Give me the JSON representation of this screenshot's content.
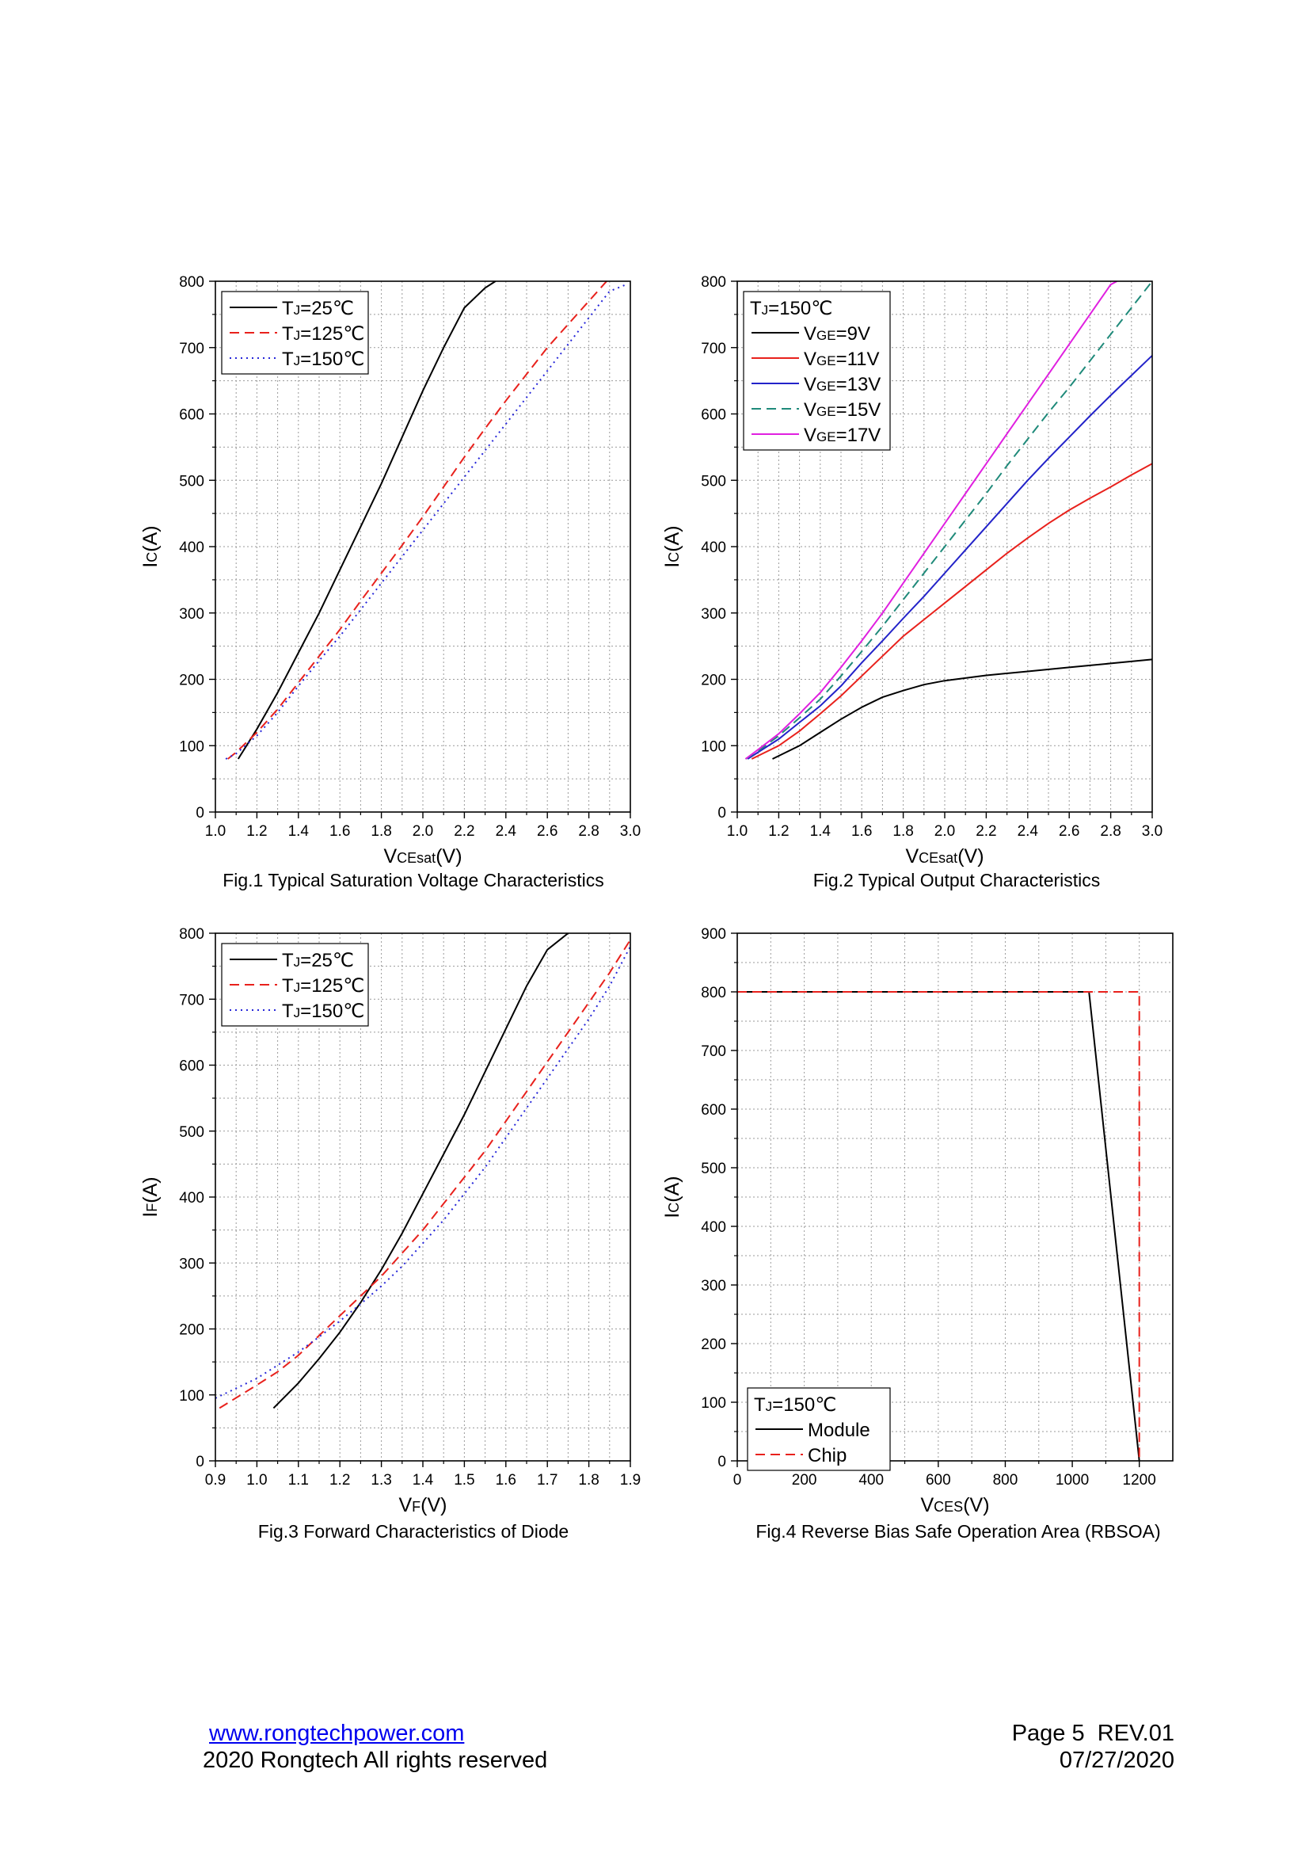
{
  "chart_data": [
    {
      "type": "line",
      "caption": "Fig.1 Typical Saturation Voltage Characteristics",
      "xlabel": "VCEsat(V)",
      "xlabel_parts": [
        [
          "V",
          "main"
        ],
        [
          "CEsat",
          "sub"
        ],
        [
          "(V)",
          "main"
        ]
      ],
      "ylabel_parts": [
        [
          "I",
          "main"
        ],
        [
          "C",
          "sub"
        ],
        [
          "(A)",
          "main"
        ]
      ],
      "xlim": [
        1.0,
        3.0
      ],
      "ylim": [
        0,
        800
      ],
      "xticks": [
        1.0,
        1.2,
        1.4,
        1.6,
        1.8,
        2.0,
        2.2,
        2.4,
        2.6,
        2.8,
        3.0
      ],
      "xtick_labels": [
        "1.0",
        "1.2",
        "1.4",
        "1.6",
        "1.8",
        "2.0",
        "2.2",
        "2.4",
        "2.6",
        "2.8",
        "3.0"
      ],
      "yticks": [
        0,
        100,
        200,
        300,
        400,
        500,
        600,
        700,
        800
      ],
      "ytick_labels": [
        "0",
        "100",
        "200",
        "300",
        "400",
        "500",
        "600",
        "700",
        "800"
      ],
      "grid": true,
      "legend_position": "top-left",
      "legend_title": [],
      "series": [
        {
          "name": "TJ=25℃",
          "name_parts": [
            [
              "T",
              "main"
            ],
            [
              "J",
              "sub"
            ],
            [
              "=25℃",
              "main"
            ]
          ],
          "color": "#000000",
          "style": "solid",
          "x": [
            1.11,
            1.2,
            1.3,
            1.4,
            1.5,
            1.6,
            1.7,
            1.8,
            1.9,
            2.0,
            2.1,
            2.2,
            2.3,
            2.35
          ],
          "y": [
            80,
            125,
            180,
            240,
            300,
            365,
            430,
            495,
            565,
            635,
            700,
            760,
            790,
            800
          ]
        },
        {
          "name": "TJ=125℃",
          "name_parts": [
            [
              "T",
              "main"
            ],
            [
              "J",
              "sub"
            ],
            [
              "=125℃",
              "main"
            ]
          ],
          "color": "#e8211c",
          "style": "dashed",
          "x": [
            1.06,
            1.1,
            1.2,
            1.3,
            1.4,
            1.5,
            1.6,
            1.7,
            1.8,
            1.9,
            2.0,
            2.1,
            2.2,
            2.3,
            2.4,
            2.5,
            2.6,
            2.7,
            2.8,
            2.9
          ],
          "y": [
            80,
            90,
            120,
            155,
            195,
            235,
            275,
            318,
            360,
            402,
            445,
            490,
            535,
            578,
            620,
            660,
            700,
            735,
            770,
            805
          ]
        },
        {
          "name": "TJ=150℃",
          "name_parts": [
            [
              "T",
              "main"
            ],
            [
              "J",
              "sub"
            ],
            [
              "=150℃",
              "main"
            ]
          ],
          "color": "#2626d9",
          "style": "dotted",
          "x": [
            1.05,
            1.1,
            1.2,
            1.3,
            1.4,
            1.5,
            1.6,
            1.7,
            1.8,
            1.9,
            2.0,
            2.1,
            2.2,
            2.3,
            2.4,
            2.5,
            2.6,
            2.7,
            2.8,
            2.9,
            2.98
          ],
          "y": [
            80,
            88,
            115,
            150,
            190,
            228,
            265,
            305,
            345,
            385,
            425,
            465,
            505,
            545,
            585,
            625,
            665,
            705,
            745,
            785,
            795
          ]
        }
      ]
    },
    {
      "type": "line",
      "caption": "Fig.2 Typical Output Characteristics",
      "xlabel": "VCEsat(V)",
      "xlabel_parts": [
        [
          "V",
          "main"
        ],
        [
          "CEsat",
          "sub"
        ],
        [
          "(V)",
          "main"
        ]
      ],
      "ylabel_parts": [
        [
          "I",
          "main"
        ],
        [
          "C",
          "sub"
        ],
        [
          "(A)",
          "main"
        ]
      ],
      "xlim": [
        1.0,
        3.0
      ],
      "ylim": [
        0,
        800
      ],
      "xticks": [
        1.0,
        1.2,
        1.4,
        1.6,
        1.8,
        2.0,
        2.2,
        2.4,
        2.6,
        2.8,
        3.0
      ],
      "xtick_labels": [
        "1.0",
        "1.2",
        "1.4",
        "1.6",
        "1.8",
        "2.0",
        "2.2",
        "2.4",
        "2.6",
        "2.8",
        "3.0"
      ],
      "yticks": [
        0,
        100,
        200,
        300,
        400,
        500,
        600,
        700,
        800
      ],
      "ytick_labels": [
        "0",
        "100",
        "200",
        "300",
        "400",
        "500",
        "600",
        "700",
        "800"
      ],
      "grid": true,
      "legend_position": "top-left",
      "legend_title": [
        [
          "T",
          "main"
        ],
        [
          "J",
          "sub"
        ],
        [
          "=150℃",
          "main"
        ]
      ],
      "series": [
        {
          "name": "VGE=9V",
          "name_parts": [
            [
              "V",
              "main"
            ],
            [
              "GE",
              "sub"
            ],
            [
              "=9V",
              "main"
            ]
          ],
          "color": "#000000",
          "style": "solid",
          "x": [
            1.17,
            1.3,
            1.4,
            1.5,
            1.6,
            1.7,
            1.8,
            1.9,
            2.0,
            2.2,
            2.4,
            2.6,
            2.8,
            3.0
          ],
          "y": [
            80,
            100,
            120,
            140,
            158,
            173,
            183,
            192,
            198,
            206,
            212,
            218,
            224,
            230
          ]
        },
        {
          "name": "VGE=11V",
          "name_parts": [
            [
              "V",
              "main"
            ],
            [
              "GE",
              "sub"
            ],
            [
              "=11V",
              "main"
            ]
          ],
          "color": "#e8211c",
          "style": "solid",
          "x": [
            1.07,
            1.2,
            1.3,
            1.4,
            1.5,
            1.6,
            1.7,
            1.8,
            1.9,
            2.0,
            2.1,
            2.2,
            2.3,
            2.4,
            2.5,
            2.6,
            2.7,
            2.8,
            2.9,
            3.0
          ],
          "y": [
            80,
            100,
            122,
            148,
            175,
            205,
            235,
            265,
            290,
            315,
            340,
            365,
            390,
            413,
            435,
            455,
            473,
            490,
            508,
            525
          ]
        },
        {
          "name": "VGE=13V",
          "name_parts": [
            [
              "V",
              "main"
            ],
            [
              "GE",
              "sub"
            ],
            [
              "=13V",
              "main"
            ]
          ],
          "color": "#2323c9",
          "style": "solid",
          "x": [
            1.05,
            1.1,
            1.2,
            1.3,
            1.4,
            1.5,
            1.6,
            1.7,
            1.8,
            1.9,
            2.0,
            2.1,
            2.2,
            2.3,
            2.4,
            2.5,
            2.6,
            2.7,
            2.8,
            2.9,
            3.0
          ],
          "y": [
            80,
            90,
            110,
            135,
            160,
            190,
            225,
            258,
            292,
            325,
            360,
            395,
            430,
            465,
            500,
            533,
            565,
            597,
            628,
            658,
            688
          ]
        },
        {
          "name": "VGE=15V",
          "name_parts": [
            [
              "V",
              "main"
            ],
            [
              "GE",
              "sub"
            ],
            [
              "=15V",
              "main"
            ]
          ],
          "color": "#1f8a7a",
          "style": "dashed",
          "x": [
            1.04,
            1.1,
            1.2,
            1.3,
            1.4,
            1.5,
            1.6,
            1.7,
            1.8,
            1.9,
            2.0,
            2.1,
            2.2,
            2.3,
            2.4,
            2.5,
            2.6,
            2.7,
            2.8,
            2.9,
            3.0
          ],
          "y": [
            80,
            92,
            115,
            142,
            170,
            205,
            242,
            280,
            320,
            360,
            400,
            440,
            480,
            522,
            562,
            602,
            640,
            680,
            720,
            760,
            800
          ]
        },
        {
          "name": "VGE=17V",
          "name_parts": [
            [
              "V",
              "main"
            ],
            [
              "GE",
              "sub"
            ],
            [
              "=17V",
              "main"
            ]
          ],
          "color": "#e020e0",
          "style": "solid",
          "x": [
            1.04,
            1.1,
            1.2,
            1.3,
            1.4,
            1.5,
            1.6,
            1.7,
            1.8,
            1.9,
            2.0,
            2.1,
            2.2,
            2.3,
            2.4,
            2.5,
            2.6,
            2.7,
            2.8,
            2.83
          ],
          "y": [
            80,
            94,
            118,
            148,
            180,
            218,
            258,
            300,
            345,
            390,
            435,
            480,
            525,
            570,
            615,
            660,
            705,
            750,
            795,
            800
          ]
        }
      ]
    },
    {
      "type": "line",
      "caption": "Fig.3 Forward Characteristics of Diode",
      "xlabel": "VF(V)",
      "xlabel_parts": [
        [
          "V",
          "main"
        ],
        [
          "F",
          "sub"
        ],
        [
          "(V)",
          "main"
        ]
      ],
      "ylabel_parts": [
        [
          "I",
          "main"
        ],
        [
          "F",
          "sub"
        ],
        [
          "(A)",
          "main"
        ]
      ],
      "xlim": [
        0.9,
        1.9
      ],
      "ylim": [
        0,
        800
      ],
      "xticks": [
        0.9,
        1.0,
        1.1,
        1.2,
        1.3,
        1.4,
        1.5,
        1.6,
        1.7,
        1.8,
        1.9
      ],
      "xtick_labels": [
        "0.9",
        "1.0",
        "1.1",
        "1.2",
        "1.3",
        "1.4",
        "1.5",
        "1.6",
        "1.7",
        "1.8",
        "1.9"
      ],
      "yticks": [
        0,
        100,
        200,
        300,
        400,
        500,
        600,
        700,
        800
      ],
      "ytick_labels": [
        "0",
        "100",
        "200",
        "300",
        "400",
        "500",
        "600",
        "700",
        "800"
      ],
      "grid": true,
      "legend_position": "top-left",
      "legend_title": [],
      "series": [
        {
          "name": "TJ=25℃",
          "name_parts": [
            [
              "T",
              "main"
            ],
            [
              "J",
              "sub"
            ],
            [
              "=25℃",
              "main"
            ]
          ],
          "color": "#000000",
          "style": "solid",
          "x": [
            1.04,
            1.1,
            1.15,
            1.2,
            1.25,
            1.3,
            1.35,
            1.4,
            1.45,
            1.5,
            1.55,
            1.6,
            1.65,
            1.7,
            1.75,
            1.76
          ],
          "y": [
            80,
            118,
            155,
            195,
            240,
            290,
            345,
            405,
            465,
            525,
            590,
            655,
            720,
            775,
            800,
            805
          ]
        },
        {
          "name": "TJ=125℃",
          "name_parts": [
            [
              "T",
              "main"
            ],
            [
              "J",
              "sub"
            ],
            [
              "=125℃",
              "main"
            ]
          ],
          "color": "#e8211c",
          "style": "dashed",
          "x": [
            0.91,
            1.0,
            1.05,
            1.1,
            1.15,
            1.2,
            1.25,
            1.3,
            1.35,
            1.4,
            1.45,
            1.5,
            1.55,
            1.6,
            1.65,
            1.7,
            1.75,
            1.8,
            1.85,
            1.9
          ],
          "y": [
            80,
            115,
            135,
            160,
            190,
            220,
            250,
            280,
            315,
            350,
            390,
            430,
            470,
            515,
            560,
            605,
            650,
            695,
            740,
            790
          ]
        },
        {
          "name": "TJ=150℃",
          "name_parts": [
            [
              "T",
              "main"
            ],
            [
              "J",
              "sub"
            ],
            [
              "=150℃",
              "main"
            ]
          ],
          "color": "#2626d9",
          "style": "dotted",
          "x": [
            0.9,
            0.95,
            1.0,
            1.05,
            1.1,
            1.15,
            1.2,
            1.25,
            1.3,
            1.35,
            1.4,
            1.45,
            1.5,
            1.55,
            1.6,
            1.65,
            1.7,
            1.75,
            1.8,
            1.85,
            1.9
          ],
          "y": [
            95,
            110,
            125,
            145,
            165,
            188,
            212,
            238,
            265,
            295,
            330,
            365,
            405,
            445,
            490,
            535,
            580,
            625,
            670,
            720,
            780
          ]
        }
      ]
    },
    {
      "type": "line",
      "caption": "Fig.4 Reverse Bias Safe Operation Area (RBSOA)",
      "xlabel": "VCES(V)",
      "xlabel_parts": [
        [
          "V",
          "main"
        ],
        [
          "CES",
          "sub"
        ],
        [
          "(V)",
          "main"
        ]
      ],
      "ylabel_parts": [
        [
          "I",
          "main"
        ],
        [
          "C",
          "sub"
        ],
        [
          "(A)",
          "main"
        ]
      ],
      "xlim": [
        0,
        1300
      ],
      "ylim": [
        0,
        900
      ],
      "xticks": [
        0,
        200,
        400,
        600,
        800,
        1000,
        1200
      ],
      "xtick_labels": [
        "0",
        "200",
        "400",
        "600",
        "800",
        "1000",
        "1200"
      ],
      "yticks": [
        0,
        100,
        200,
        300,
        400,
        500,
        600,
        700,
        800,
        900
      ],
      "ytick_labels": [
        "0",
        "100",
        "200",
        "300",
        "400",
        "500",
        "600",
        "700",
        "800",
        "900"
      ],
      "grid": true,
      "legend_position": "bottom-left",
      "legend_title": [
        [
          "T",
          "main"
        ],
        [
          "J",
          "sub"
        ],
        [
          "=150℃",
          "main"
        ]
      ],
      "series": [
        {
          "name": "Module",
          "name_parts": [
            [
              "Module",
              "main"
            ]
          ],
          "color": "#000000",
          "style": "solid",
          "x": [
            0,
            1050,
            1200
          ],
          "y": [
            800,
            800,
            0
          ]
        },
        {
          "name": "Chip",
          "name_parts": [
            [
              "Chip",
              "main"
            ]
          ],
          "color": "#e8211c",
          "style": "dashed",
          "x": [
            0,
            1200,
            1200
          ],
          "y": [
            800,
            800,
            0
          ]
        }
      ]
    }
  ],
  "footer": {
    "website": "www.rongtechpower.com",
    "copyright": "2020 Rongtech All rights reserved",
    "page": "Page 5  REV.01",
    "date": "07/27/2020"
  }
}
